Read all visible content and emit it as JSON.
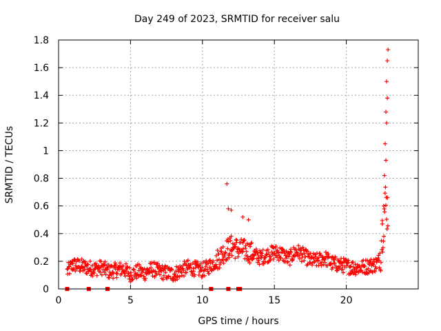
{
  "chart_data": {
    "type": "scatter",
    "title": "Day 249 of 2023, SRMTID for receiver salu",
    "xlabel": "GPS time / hours",
    "ylabel": "SRMTID / TECUs",
    "xlim": [
      0,
      25
    ],
    "ylim": [
      0,
      1.8
    ],
    "xticks": [
      0,
      5,
      10,
      15,
      20
    ],
    "yticks": [
      0,
      0.2,
      0.4,
      0.6,
      0.8,
      1,
      1.2,
      1.4,
      1.6,
      1.8
    ],
    "xtick_labels": [
      "0",
      "5",
      "10",
      "15",
      "20"
    ],
    "ytick_labels": [
      "0",
      "0.2",
      "0.4",
      "0.6",
      "0.8",
      "1",
      "1.2",
      "1.4",
      "1.6",
      "1.8"
    ],
    "grid": true,
    "series": [
      {
        "name": "SRMTID",
        "marker": "plus",
        "color": "#ff0000",
        "trend": [
          [
            0.6,
            0.12
          ],
          [
            1.0,
            0.17
          ],
          [
            1.5,
            0.16
          ],
          [
            2.0,
            0.15
          ],
          [
            2.5,
            0.14
          ],
          [
            3.0,
            0.15
          ],
          [
            3.5,
            0.12
          ],
          [
            4.0,
            0.13
          ],
          [
            4.5,
            0.14
          ],
          [
            5.0,
            0.1
          ],
          [
            5.5,
            0.12
          ],
          [
            6.0,
            0.11
          ],
          [
            6.5,
            0.14
          ],
          [
            7.0,
            0.12
          ],
          [
            7.5,
            0.11
          ],
          [
            8.0,
            0.1
          ],
          [
            8.5,
            0.13
          ],
          [
            9.0,
            0.15
          ],
          [
            9.5,
            0.14
          ],
          [
            10.0,
            0.13
          ],
          [
            10.5,
            0.16
          ],
          [
            11.0,
            0.2
          ],
          [
            11.5,
            0.26
          ],
          [
            12.0,
            0.3
          ],
          [
            12.5,
            0.28
          ],
          [
            13.0,
            0.27
          ],
          [
            13.5,
            0.25
          ],
          [
            14.0,
            0.22
          ],
          [
            14.5,
            0.24
          ],
          [
            15.0,
            0.26
          ],
          [
            15.5,
            0.25
          ],
          [
            16.0,
            0.21
          ],
          [
            16.5,
            0.27
          ],
          [
            17.0,
            0.24
          ],
          [
            17.5,
            0.2
          ],
          [
            18.0,
            0.2
          ],
          [
            18.5,
            0.22
          ],
          [
            19.0,
            0.18
          ],
          [
            19.5,
            0.17
          ],
          [
            20.0,
            0.16
          ],
          [
            20.5,
            0.15
          ],
          [
            21.0,
            0.15
          ],
          [
            21.5,
            0.16
          ],
          [
            22.0,
            0.17
          ],
          [
            22.3,
            0.2
          ],
          [
            22.5,
            0.4
          ],
          [
            22.7,
            0.6
          ],
          [
            22.9,
            0.55
          ]
        ],
        "highlights": [
          [
            11.7,
            0.76
          ],
          [
            11.8,
            0.58
          ],
          [
            12.0,
            0.57
          ],
          [
            12.8,
            0.52
          ],
          [
            13.2,
            0.5
          ],
          [
            22.5,
            0.47
          ],
          [
            22.6,
            0.6
          ],
          [
            22.65,
            0.82
          ],
          [
            22.7,
            1.05
          ],
          [
            22.75,
            1.28
          ],
          [
            22.8,
            1.5
          ],
          [
            22.85,
            1.65
          ],
          [
            22.9,
            1.73
          ],
          [
            22.8,
            1.2
          ],
          [
            22.85,
            1.38
          ],
          [
            22.75,
            0.93
          ]
        ],
        "gap_markers": [
          0.6,
          2.1,
          3.4,
          10.6,
          11.8,
          12.5,
          12.6
        ]
      }
    ]
  }
}
